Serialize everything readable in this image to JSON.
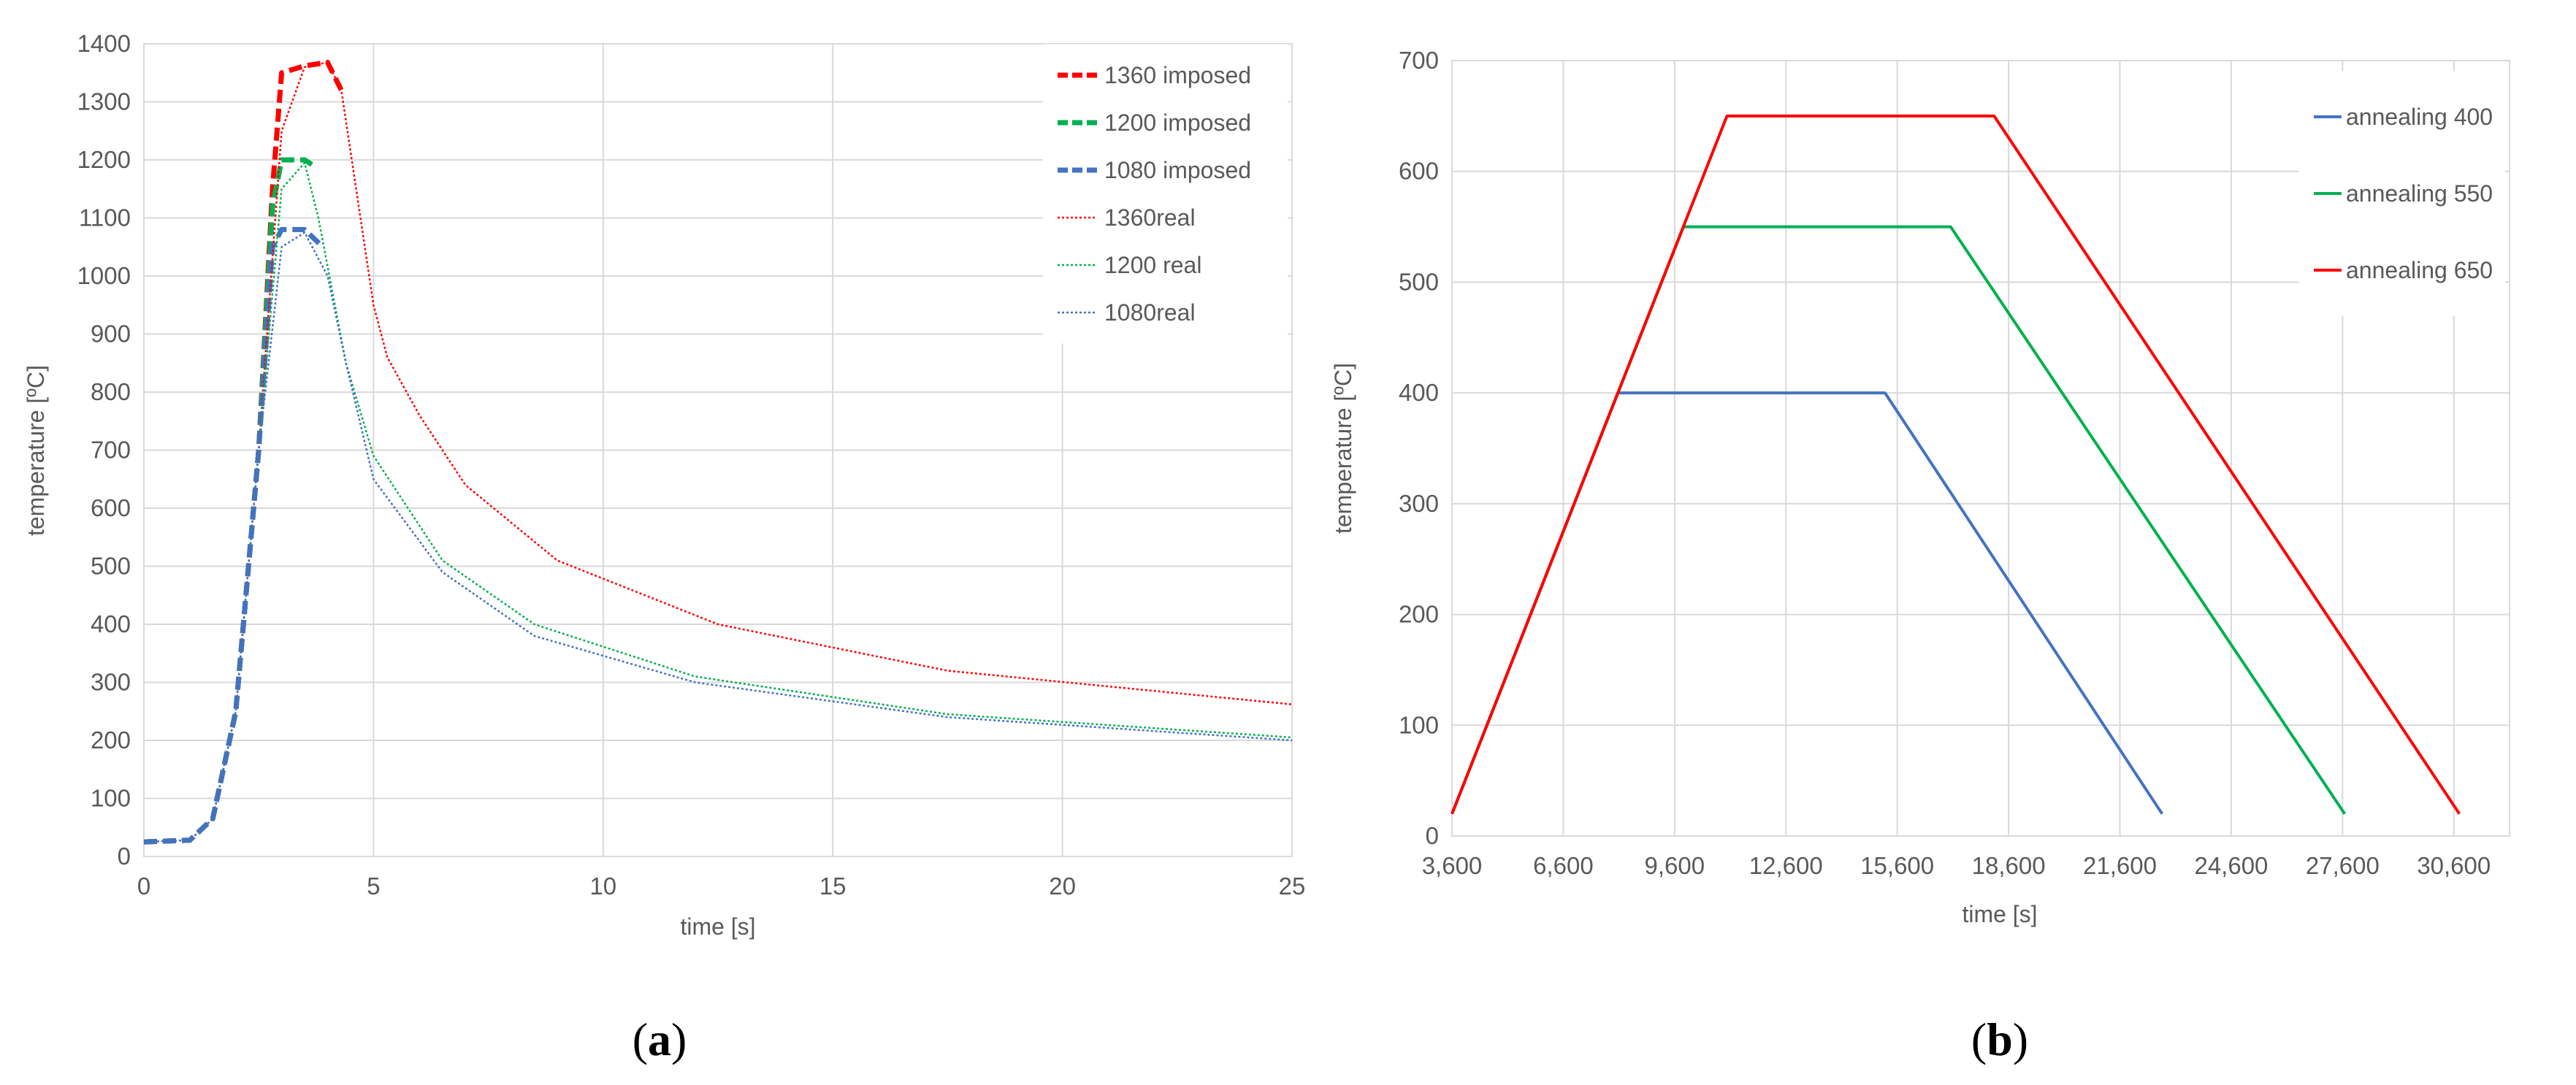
{
  "colors": {
    "red": "#ff0000",
    "green": "#00b050",
    "blue": "#4472c4",
    "grid": "#d9d9d9",
    "text": "#595959"
  },
  "chart_data": [
    {
      "panel": "a",
      "type": "line",
      "caption": "a",
      "xlabel": "time [s]",
      "ylabel": "temperature [ºC]",
      "xlim": [
        0,
        25
      ],
      "ylim": [
        0,
        1400
      ],
      "xticks": [
        0,
        5,
        10,
        15,
        20,
        25
      ],
      "yticks": [
        0,
        100,
        200,
        300,
        400,
        500,
        600,
        700,
        800,
        900,
        1000,
        1100,
        1200,
        1300,
        1400
      ],
      "grid": true,
      "legend": "top-right",
      "series": [
        {
          "name": "1360 imposed",
          "color": "#ff0000",
          "style": "dashed",
          "x": [
            0,
            1,
            1.5,
            2,
            2.5,
            2.8,
            3,
            3.5,
            4,
            4.3
          ],
          "y": [
            25,
            28,
            65,
            250,
            700,
            1150,
            1350,
            1362,
            1368,
            1320
          ]
        },
        {
          "name": "1200 imposed",
          "color": "#00b050",
          "style": "dashed",
          "x": [
            0,
            1,
            1.5,
            2,
            2.5,
            2.8,
            3,
            3.5,
            3.7
          ],
          "y": [
            25,
            28,
            65,
            250,
            700,
            1120,
            1200,
            1200,
            1190
          ]
        },
        {
          "name": "1080 imposed",
          "color": "#4472c4",
          "style": "dashed",
          "x": [
            0,
            1,
            1.5,
            2,
            2.5,
            2.8,
            3,
            3.5,
            3.9
          ],
          "y": [
            25,
            28,
            65,
            250,
            700,
            1050,
            1080,
            1080,
            1050
          ]
        },
        {
          "name": "1360real",
          "color": "#ff0000",
          "style": "dotted",
          "x": [
            0,
            1,
            1.5,
            2,
            2.5,
            3,
            3.5,
            4,
            4.3,
            5,
            5.3,
            6,
            7,
            9,
            12.5,
            17.5,
            25
          ],
          "y": [
            25,
            28,
            65,
            250,
            700,
            1250,
            1360,
            1368,
            1320,
            950,
            860,
            760,
            640,
            510,
            400,
            320,
            262
          ]
        },
        {
          "name": "1200 real",
          "color": "#00b050",
          "style": "dotted",
          "x": [
            0,
            1,
            1.5,
            2,
            2.5,
            3,
            3.5,
            3.8,
            4.4,
            5,
            6.5,
            8.5,
            12,
            17.5,
            25
          ],
          "y": [
            25,
            28,
            65,
            250,
            700,
            1150,
            1195,
            1100,
            850,
            690,
            510,
            400,
            310,
            245,
            205
          ]
        },
        {
          "name": "1080real",
          "color": "#4472c4",
          "style": "dotted",
          "x": [
            0,
            1,
            1.5,
            2,
            2.5,
            3,
            3.5,
            4,
            4.4,
            5,
            6.5,
            8.5,
            12,
            17.5,
            25
          ],
          "y": [
            25,
            28,
            65,
            250,
            700,
            1050,
            1075,
            1000,
            850,
            650,
            490,
            380,
            300,
            240,
            200
          ]
        }
      ]
    },
    {
      "panel": "b",
      "type": "line",
      "caption": "b",
      "xlabel": "time [s]",
      "ylabel": "temperature [ºC]",
      "xlim": [
        3600,
        32100
      ],
      "ylim": [
        0,
        700
      ],
      "xticks": [
        3600,
        6600,
        9600,
        12600,
        15600,
        18600,
        21600,
        24600,
        27600,
        30600
      ],
      "xticklabels": [
        "3,600",
        "6,600",
        "9,600",
        "12,600",
        "15,600",
        "18,600",
        "21,600",
        "24,600",
        "27,600",
        "30,600"
      ],
      "yticks": [
        0,
        100,
        200,
        300,
        400,
        500,
        600,
        700
      ],
      "grid": true,
      "legend": "top-right",
      "series": [
        {
          "name": "annealing 400",
          "color": "#4472c4",
          "x": [
            3600,
            8070,
            15270,
            22740
          ],
          "y": [
            20,
            400,
            400,
            20
          ]
        },
        {
          "name": "annealing 550",
          "color": "#00b050",
          "x": [
            3600,
            9840,
            17040,
            27660
          ],
          "y": [
            20,
            550,
            550,
            20
          ]
        },
        {
          "name": "annealing 650",
          "color": "#ff0000",
          "x": [
            3600,
            11010,
            18210,
            30750
          ],
          "y": [
            20,
            650,
            650,
            20
          ]
        }
      ]
    }
  ]
}
